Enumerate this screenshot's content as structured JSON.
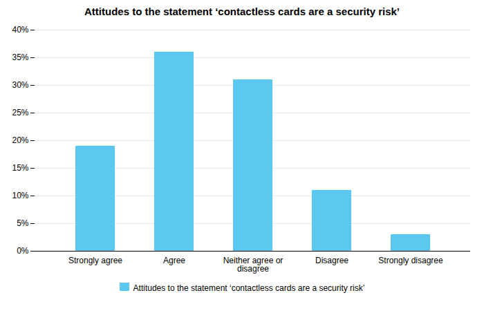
{
  "chart_data": {
    "type": "bar",
    "title": "Attitudes to the statement ‘contactless cards are a security risk’",
    "categories": [
      "Strongly agree",
      "Agree",
      "Neither agree or\ndisagree",
      "Disagree",
      "Strongly disagree"
    ],
    "series": [
      {
        "name": "Attitudes to the statement ‘contactless cards are a security risk’",
        "color": "#5BC8F0",
        "values": [
          19,
          36,
          31,
          11,
          3
        ]
      }
    ],
    "ylim": [
      0,
      40
    ],
    "yticks": [
      {
        "value": 0,
        "label": "0%"
      },
      {
        "value": 5,
        "label": "5%"
      },
      {
        "value": 10,
        "label": "10%"
      },
      {
        "value": 15,
        "label": "15%"
      },
      {
        "value": 20,
        "label": "20%"
      },
      {
        "value": 25,
        "label": "25%"
      },
      {
        "value": 30,
        "label": "30%"
      },
      {
        "value": 35,
        "label": "35%"
      },
      {
        "value": 40,
        "label": "40%"
      }
    ],
    "grid": true,
    "legend": "bottom"
  }
}
